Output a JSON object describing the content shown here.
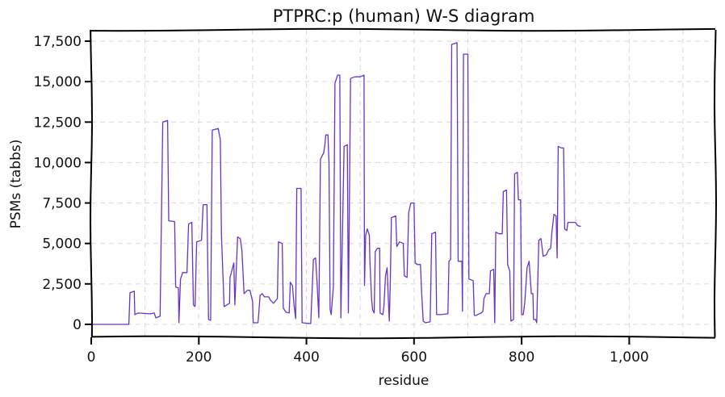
{
  "chart_data": {
    "type": "line",
    "title": "PTPRC:p (human) W-S diagram",
    "xlabel": "residue",
    "ylabel": "PSMs (tabbs)",
    "xlim": [
      0,
      1160
    ],
    "ylim": [
      -800,
      18200
    ],
    "xticks": [
      0,
      200,
      400,
      600,
      800,
      1000
    ],
    "xtick_labels": [
      "0",
      "200",
      "400",
      "600",
      "800",
      "1,000"
    ],
    "yticks": [
      0,
      2500,
      5000,
      7500,
      10000,
      12500,
      15000,
      17500
    ],
    "ytick_labels": [
      "0",
      "2,500",
      "5,000",
      "7,500",
      "10,000",
      "12,500",
      "15,000",
      "17,500"
    ],
    "grid": true,
    "legend": "none",
    "series": [
      {
        "color": "#6633cc",
        "points": [
          [
            2,
            0
          ],
          [
            70,
            0
          ],
          [
            72,
            1950
          ],
          [
            80,
            2050
          ],
          [
            81,
            600
          ],
          [
            87,
            700
          ],
          [
            110,
            650
          ],
          [
            117,
            700
          ],
          [
            120,
            400
          ],
          [
            128,
            500
          ],
          [
            133,
            12500
          ],
          [
            142,
            12600
          ],
          [
            144,
            6400
          ],
          [
            155,
            6350
          ],
          [
            157,
            2300
          ],
          [
            162,
            2250
          ],
          [
            163,
            100
          ],
          [
            166,
            2800
          ],
          [
            170,
            3200
          ],
          [
            178,
            3200
          ],
          [
            181,
            6200
          ],
          [
            187,
            6300
          ],
          [
            190,
            1200
          ],
          [
            193,
            1100
          ],
          [
            196,
            5100
          ],
          [
            205,
            5200
          ],
          [
            208,
            7400
          ],
          [
            215,
            7400
          ],
          [
            218,
            300
          ],
          [
            222,
            250
          ],
          [
            225,
            12000
          ],
          [
            236,
            12100
          ],
          [
            240,
            11400
          ],
          [
            242,
            5500
          ],
          [
            247,
            1100
          ],
          [
            252,
            1200
          ],
          [
            257,
            1300
          ],
          [
            258,
            2900
          ],
          [
            262,
            3400
          ],
          [
            265,
            3800
          ],
          [
            267,
            1200
          ],
          [
            272,
            5400
          ],
          [
            277,
            5300
          ],
          [
            280,
            4600
          ],
          [
            284,
            1900
          ],
          [
            290,
            2100
          ],
          [
            295,
            2100
          ],
          [
            300,
            1400
          ],
          [
            301,
            100
          ],
          [
            310,
            100
          ],
          [
            314,
            1800
          ],
          [
            318,
            1900
          ],
          [
            322,
            1700
          ],
          [
            330,
            1700
          ],
          [
            333,
            1500
          ],
          [
            339,
            1300
          ],
          [
            346,
            1600
          ],
          [
            348,
            5100
          ],
          [
            355,
            5000
          ],
          [
            357,
            1000
          ],
          [
            362,
            750
          ],
          [
            368,
            700
          ],
          [
            370,
            2600
          ],
          [
            374,
            2400
          ],
          [
            377,
            1200
          ],
          [
            380,
            350
          ],
          [
            382,
            8400
          ],
          [
            390,
            8400
          ],
          [
            392,
            100
          ],
          [
            408,
            50
          ],
          [
            413,
            4000
          ],
          [
            417,
            4100
          ],
          [
            420,
            2400
          ],
          [
            423,
            400
          ],
          [
            426,
            10200
          ],
          [
            432,
            10600
          ],
          [
            434,
            11000
          ],
          [
            436,
            11700
          ],
          [
            440,
            11700
          ],
          [
            442,
            10000
          ],
          [
            444,
            900
          ],
          [
            446,
            600
          ],
          [
            450,
            2300
          ],
          [
            453,
            14900
          ],
          [
            458,
            15400
          ],
          [
            462,
            15400
          ],
          [
            464,
            400
          ],
          [
            470,
            11000
          ],
          [
            476,
            11100
          ],
          [
            478,
            700
          ],
          [
            482,
            15200
          ],
          [
            490,
            15300
          ],
          [
            500,
            15300
          ],
          [
            507,
            15400
          ],
          [
            508,
            2400
          ],
          [
            510,
            5500
          ],
          [
            513,
            5900
          ],
          [
            517,
            5500
          ],
          [
            518,
            3900
          ],
          [
            521,
            1600
          ],
          [
            523,
            900
          ],
          [
            526,
            700
          ],
          [
            528,
            4500
          ],
          [
            532,
            4700
          ],
          [
            536,
            4700
          ],
          [
            537,
            700
          ],
          [
            542,
            600
          ],
          [
            544,
            1100
          ],
          [
            547,
            3000
          ],
          [
            550,
            3500
          ],
          [
            552,
            1800
          ],
          [
            554,
            200
          ],
          [
            556,
            2800
          ],
          [
            558,
            6600
          ],
          [
            566,
            6700
          ],
          [
            568,
            4800
          ],
          [
            573,
            5100
          ],
          [
            580,
            5000
          ],
          [
            582,
            3000
          ],
          [
            587,
            2900
          ],
          [
            590,
            6900
          ],
          [
            594,
            7500
          ],
          [
            600,
            7500
          ],
          [
            602,
            3800
          ],
          [
            606,
            3700
          ],
          [
            612,
            3700
          ],
          [
            614,
            2000
          ],
          [
            617,
            200
          ],
          [
            621,
            100
          ],
          [
            630,
            150
          ],
          [
            633,
            5600
          ],
          [
            640,
            5700
          ],
          [
            642,
            600
          ],
          [
            650,
            600
          ],
          [
            663,
            650
          ],
          [
            665,
            3900
          ],
          [
            668,
            4000
          ],
          [
            670,
            17300
          ],
          [
            680,
            17400
          ],
          [
            682,
            3900
          ],
          [
            689,
            3900
          ],
          [
            690,
            800
          ],
          [
            692,
            16700
          ],
          [
            700,
            16700
          ],
          [
            702,
            2800
          ],
          [
            710,
            2700
          ],
          [
            712,
            550
          ],
          [
            716,
            550
          ],
          [
            718,
            600
          ],
          [
            725,
            700
          ],
          [
            728,
            800
          ],
          [
            730,
            1600
          ],
          [
            734,
            1900
          ],
          [
            740,
            1900
          ],
          [
            742,
            3300
          ],
          [
            748,
            3400
          ],
          [
            750,
            100
          ],
          [
            752,
            5700
          ],
          [
            758,
            5600
          ],
          [
            764,
            5600
          ],
          [
            766,
            8200
          ],
          [
            772,
            8300
          ],
          [
            774,
            3700
          ],
          [
            778,
            3300
          ],
          [
            780,
            200
          ],
          [
            785,
            300
          ],
          [
            787,
            9300
          ],
          [
            792,
            9400
          ],
          [
            794,
            7700
          ],
          [
            798,
            7700
          ],
          [
            800,
            600
          ],
          [
            803,
            600
          ],
          [
            806,
            1400
          ],
          [
            810,
            3500
          ],
          [
            814,
            3900
          ],
          [
            818,
            1900
          ],
          [
            821,
            1900
          ],
          [
            822,
            300
          ],
          [
            826,
            300
          ],
          [
            828,
            100
          ],
          [
            832,
            5200
          ],
          [
            836,
            5300
          ],
          [
            840,
            4200
          ],
          [
            846,
            4300
          ],
          [
            850,
            4600
          ],
          [
            854,
            4700
          ],
          [
            856,
            5600
          ],
          [
            860,
            6800
          ],
          [
            864,
            6700
          ],
          [
            866,
            4100
          ],
          [
            868,
            11000
          ],
          [
            874,
            10900
          ],
          [
            878,
            10900
          ],
          [
            880,
            5900
          ],
          [
            884,
            5800
          ],
          [
            886,
            6300
          ],
          [
            900,
            6300
          ],
          [
            904,
            6100
          ],
          [
            910,
            6050
          ]
        ]
      }
    ]
  }
}
